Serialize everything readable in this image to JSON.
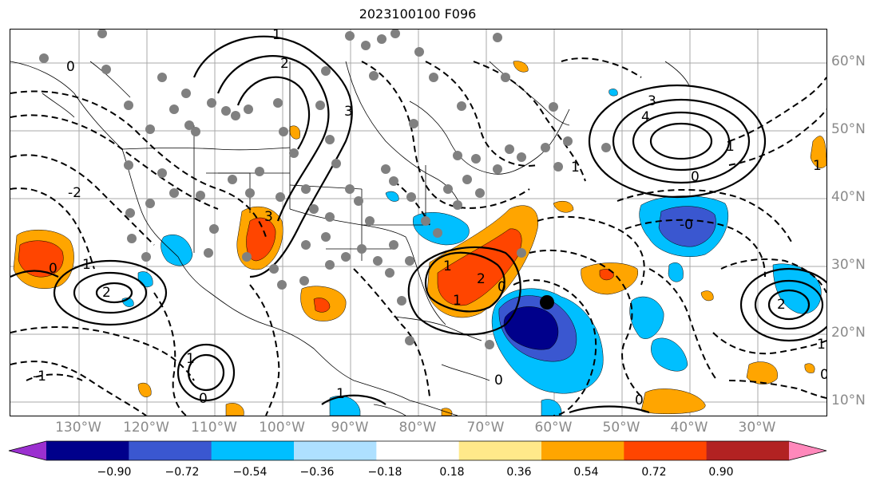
{
  "title": "2023100100 F096",
  "lat_labels": [
    "60°N",
    "50°N",
    "40°N",
    "30°N",
    "20°N",
    "10°N"
  ],
  "lon_labels": [
    "130°W",
    "120°W",
    "110°W",
    "100°W",
    "90°W",
    "80°W",
    "70°W",
    "60°W",
    "50°W",
    "40°W",
    "30°W"
  ],
  "contour_labels": [
    "0",
    "1",
    "2",
    "3",
    "4",
    "-1",
    "-2",
    "-0"
  ],
  "colorbar": {
    "ticks": [
      "−0.90",
      "−0.72",
      "−0.54",
      "−0.36",
      "−0.18",
      "0.18",
      "0.36",
      "0.54",
      "0.72",
      "0.90"
    ],
    "colors": [
      "#9b30d0",
      "#00008b",
      "#3a57d0",
      "#00bfff",
      "#aee0ff",
      "#ffffff",
      "#ffe98a",
      "#ffa500",
      "#ff4500",
      "#b22222",
      "#ff88bb"
    ]
  },
  "colors": {
    "ocean": "#ffffff",
    "land_line": "#000000",
    "grid": "#a9a9a9",
    "station": "#808080",
    "marker": "#000000"
  }
}
